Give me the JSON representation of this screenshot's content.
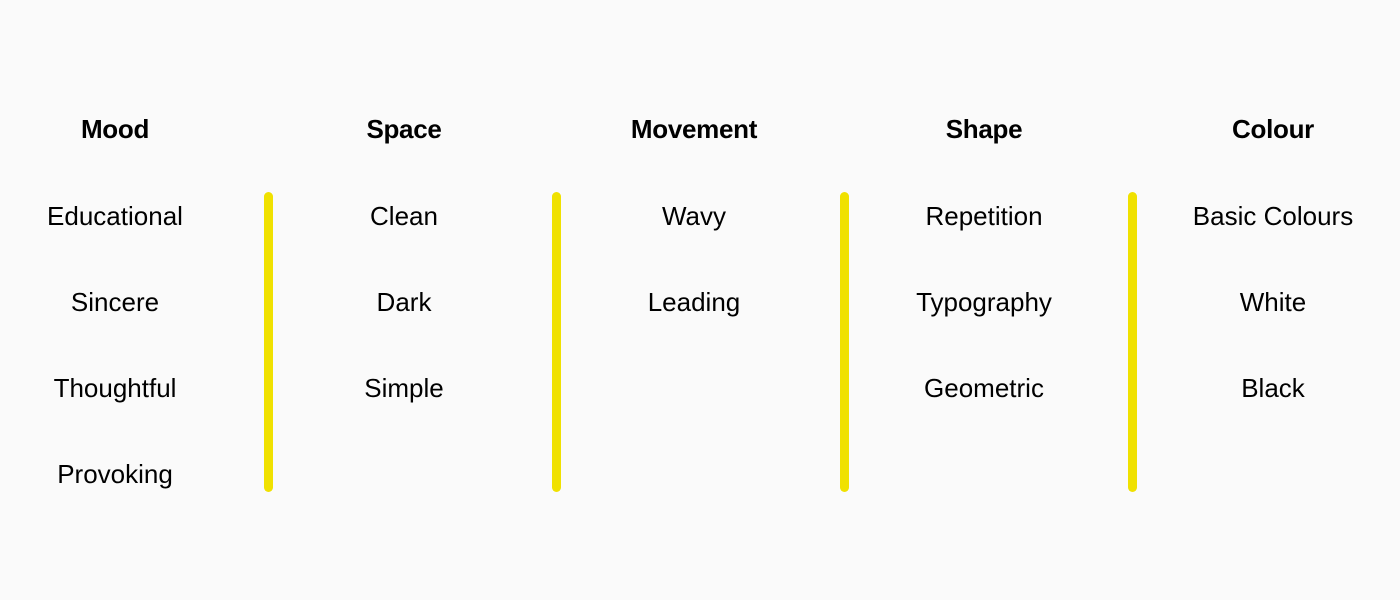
{
  "accent_color": "#f0e100",
  "columns": [
    {
      "title": "Mood",
      "items": [
        "Educational",
        "Sincere",
        "Thoughtful",
        "Provoking"
      ]
    },
    {
      "title": "Space",
      "items": [
        "Clean",
        "Dark",
        "Simple"
      ]
    },
    {
      "title": "Movement",
      "items": [
        "Wavy",
        "Leading"
      ]
    },
    {
      "title": "Shape",
      "items": [
        "Repetition",
        "Typography",
        "Geometric"
      ]
    },
    {
      "title": "Colour",
      "items": [
        "Basic Colours",
        "White",
        "Black"
      ]
    }
  ]
}
